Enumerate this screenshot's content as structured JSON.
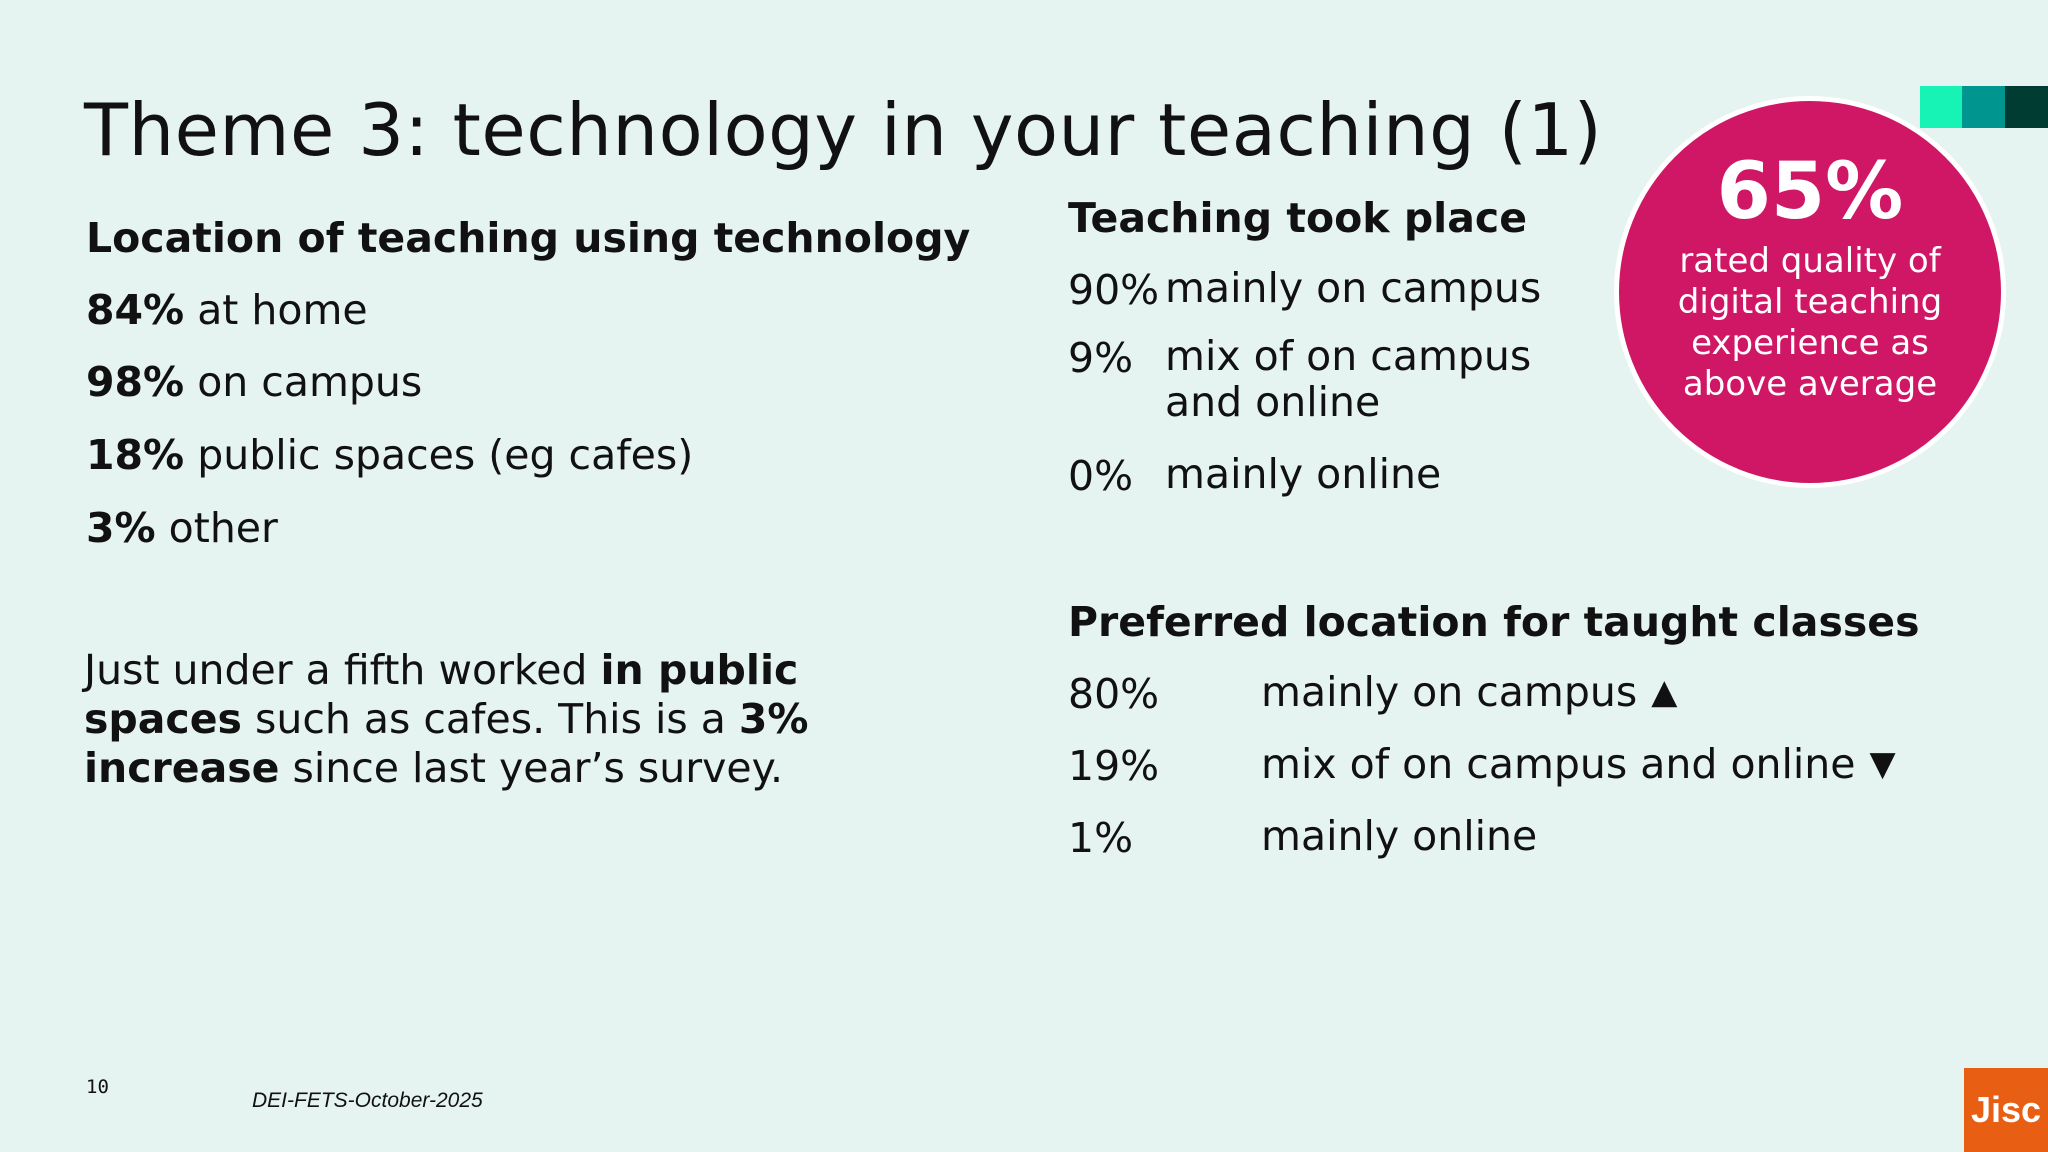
{
  "title": "Theme 3: technology in your teaching (1)",
  "location": {
    "heading": "Location of teaching using technology",
    "items": [
      {
        "pct": "84%",
        "label": "at home"
      },
      {
        "pct": "98%",
        "label": "on campus"
      },
      {
        "pct": "18%",
        "label": "public spaces (eg cafes)"
      },
      {
        "pct": "3%",
        "label": "other"
      }
    ]
  },
  "paragraph": {
    "part1": "Just under a fifth worked ",
    "bold1": "in public spaces",
    "part2": " such as cafes. This is a ",
    "bold2": "3% increase",
    "part3": " since last year’s survey."
  },
  "took_place": {
    "heading": "Teaching took place",
    "rows": [
      {
        "pct": "90%",
        "label": "mainly on campus"
      },
      {
        "pct": "9%",
        "label_line1": "mix of on campus",
        "label_line2": "and online"
      },
      {
        "pct": "0%",
        "label": "mainly online"
      }
    ]
  },
  "preferred": {
    "heading": "Preferred location for taught classes",
    "rows": [
      {
        "pct": "80%",
        "label": "mainly on campus",
        "trend": "▲",
        "trend_icon": "triangle-up-icon"
      },
      {
        "pct": "19%",
        "label": "mix of on campus and online",
        "trend": "▼",
        "trend_icon": "triangle-down-icon"
      },
      {
        "pct": "1%",
        "label": "mainly online"
      }
    ]
  },
  "callout": {
    "value": "65%",
    "text": "rated quality of digital teaching experience as above average",
    "color": "#cf1766"
  },
  "footer": {
    "page_number": "10",
    "reference": "DEI-FETS-October-2025"
  },
  "logo": {
    "text": "Jisc",
    "color": "#e85e13"
  },
  "decor_colors": [
    "#17f2b5",
    "#00968f",
    "#003c32"
  ]
}
